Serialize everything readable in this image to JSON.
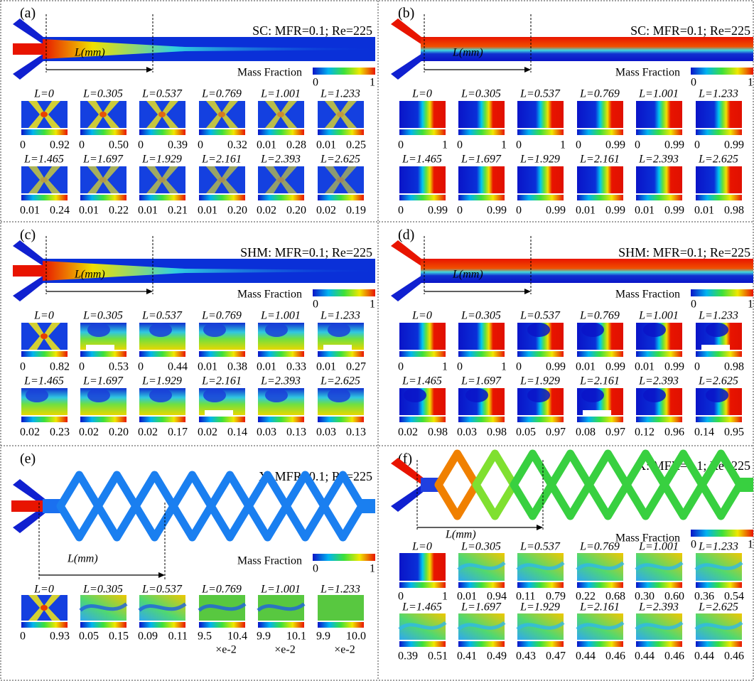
{
  "panels": [
    {
      "label": "(a)",
      "title": "SC: MFR=0.1; Re=225",
      "length_label": "L(mm)",
      "legend": {
        "title": "Mass Fraction",
        "min": "0",
        "max": "1"
      },
      "slices": [
        {
          "label": "L=0",
          "min": "0",
          "max": "0.92"
        },
        {
          "label": "L=0.305",
          "min": "0",
          "max": "0.50"
        },
        {
          "label": "L=0.537",
          "min": "0",
          "max": "0.39"
        },
        {
          "label": "L=0.769",
          "min": "0",
          "max": "0.32"
        },
        {
          "label": "L=1.001",
          "min": "0.01",
          "max": "0.28"
        },
        {
          "label": "L=1.233",
          "min": "0.01",
          "max": "0.25"
        },
        {
          "label": "L=1.465",
          "min": "0.01",
          "max": "0.24"
        },
        {
          "label": "L=1.697",
          "min": "0.01",
          "max": "0.22"
        },
        {
          "label": "L=1.929",
          "min": "0.01",
          "max": "0.21"
        },
        {
          "label": "L=2.161",
          "min": "0.01",
          "max": "0.20"
        },
        {
          "label": "L=2.393",
          "min": "0.02",
          "max": "0.20"
        },
        {
          "label": "L=2.625",
          "min": "0.02",
          "max": "0.19"
        }
      ]
    },
    {
      "label": "(b)",
      "title": "SC: MFR=0.1; Re=225",
      "length_label": "L(mm)",
      "legend": {
        "title": "Mass Fraction",
        "min": "0",
        "max": "1"
      },
      "slices": [
        {
          "label": "L=0",
          "min": "0",
          "max": "1"
        },
        {
          "label": "L=0.305",
          "min": "0",
          "max": "1"
        },
        {
          "label": "L=0.537",
          "min": "0",
          "max": "1"
        },
        {
          "label": "L=0.769",
          "min": "0",
          "max": "0.99"
        },
        {
          "label": "L=1.001",
          "min": "0",
          "max": "0.99"
        },
        {
          "label": "L=1.233",
          "min": "0",
          "max": "0.99"
        },
        {
          "label": "L=1.465",
          "min": "0",
          "max": "0.99"
        },
        {
          "label": "L=1.697",
          "min": "0",
          "max": "0.99"
        },
        {
          "label": "L=1.929",
          "min": "0",
          "max": "0.99"
        },
        {
          "label": "L=2.161",
          "min": "0.01",
          "max": "0.99"
        },
        {
          "label": "L=2.393",
          "min": "0.01",
          "max": "0.99"
        },
        {
          "label": "L=2.625",
          "min": "0.01",
          "max": "0.98"
        }
      ]
    },
    {
      "label": "(c)",
      "title": "SHM: MFR=0.1; Re=225",
      "length_label": "L(mm)",
      "legend": {
        "title": "Mass Fraction",
        "min": "0",
        "max": "1"
      },
      "slices": [
        {
          "label": "L=0",
          "min": "0",
          "max": "0.82"
        },
        {
          "label": "L=0.305",
          "min": "0",
          "max": "0.53"
        },
        {
          "label": "L=0.537",
          "min": "0",
          "max": "0.44"
        },
        {
          "label": "L=0.769",
          "min": "0.01",
          "max": "0.38"
        },
        {
          "label": "L=1.001",
          "min": "0.01",
          "max": "0.33"
        },
        {
          "label": "L=1.233",
          "min": "0.01",
          "max": "0.27"
        },
        {
          "label": "L=1.465",
          "min": "0.02",
          "max": "0.23"
        },
        {
          "label": "L=1.697",
          "min": "0.02",
          "max": "0.20"
        },
        {
          "label": "L=1.929",
          "min": "0.02",
          "max": "0.17"
        },
        {
          "label": "L=2.161",
          "min": "0.02",
          "max": "0.14"
        },
        {
          "label": "L=2.393",
          "min": "0.03",
          "max": "0.13"
        },
        {
          "label": "L=2.625",
          "min": "0.03",
          "max": "0.13"
        }
      ]
    },
    {
      "label": "(d)",
      "title": "SHM: MFR=0.1; Re=225",
      "length_label": "L(mm)",
      "legend": {
        "title": "Mass Fraction",
        "min": "0",
        "max": "1"
      },
      "slices": [
        {
          "label": "L=0",
          "min": "0",
          "max": "1"
        },
        {
          "label": "L=0.305",
          "min": "0",
          "max": "1"
        },
        {
          "label": "L=0.537",
          "min": "0",
          "max": "0.99"
        },
        {
          "label": "L=0.769",
          "min": "0.01",
          "max": "0.99"
        },
        {
          "label": "L=1.001",
          "min": "0.01",
          "max": "0.99"
        },
        {
          "label": "L=1.233",
          "min": "0",
          "max": "0.98"
        },
        {
          "label": "L=1.465",
          "min": "0.02",
          "max": "0.98"
        },
        {
          "label": "L=1.697",
          "min": "0.03",
          "max": "0.98"
        },
        {
          "label": "L=1.929",
          "min": "0.05",
          "max": "0.97"
        },
        {
          "label": "L=2.161",
          "min": "0.08",
          "max": "0.97"
        },
        {
          "label": "L=2.393",
          "min": "0.12",
          "max": "0.96"
        },
        {
          "label": "L=2.625",
          "min": "0.14",
          "max": "0.95"
        }
      ]
    },
    {
      "label": "(e)",
      "title": "X: MFR=0.1; Re=225",
      "length_label": "L(mm)",
      "legend": {
        "title": "Mass Fraction",
        "min": "0",
        "max": "1"
      },
      "slices": [
        {
          "label": "L=0",
          "min": "0",
          "max": "0.93"
        },
        {
          "label": "L=0.305",
          "min": "0.05",
          "max": "0.15"
        },
        {
          "label": "L=0.537",
          "min": "0.09",
          "max": "0.11"
        },
        {
          "label": "L=0.769",
          "min": "9.5",
          "max": "10.4",
          "note": "×e-2"
        },
        {
          "label": "L=1.001",
          "min": "9.9",
          "max": "10.1",
          "note": "×e-2"
        },
        {
          "label": "L=1.233",
          "min": "9.9",
          "max": "10.0",
          "note": "×e-2"
        }
      ]
    },
    {
      "label": "(f)",
      "title": "X: MFR=0.1; Re=225",
      "length_label": "L(mm)",
      "legend": {
        "title": "Mass Fraction",
        "min": "0",
        "max": "1"
      },
      "slices": [
        {
          "label": "L=0",
          "min": "0",
          "max": "1"
        },
        {
          "label": "L=0.305",
          "min": "0.01",
          "max": "0.94"
        },
        {
          "label": "L=0.537",
          "min": "0.11",
          "max": "0.79"
        },
        {
          "label": "L=0.769",
          "min": "0.22",
          "max": "0.68"
        },
        {
          "label": "L=1.001",
          "min": "0.30",
          "max": "0.60"
        },
        {
          "label": "L=1.233",
          "min": "0.36",
          "max": "0.54"
        },
        {
          "label": "L=1.465",
          "min": "0.39",
          "max": "0.51"
        },
        {
          "label": "L=1.697",
          "min": "0.41",
          "max": "0.49"
        },
        {
          "label": "L=1.929",
          "min": "0.43",
          "max": "0.47"
        },
        {
          "label": "L=2.161",
          "min": "0.44",
          "max": "0.46"
        },
        {
          "label": "L=2.393",
          "min": "0.44",
          "max": "0.46"
        },
        {
          "label": "L=2.625",
          "min": "0.44",
          "max": "0.46"
        }
      ]
    }
  ]
}
